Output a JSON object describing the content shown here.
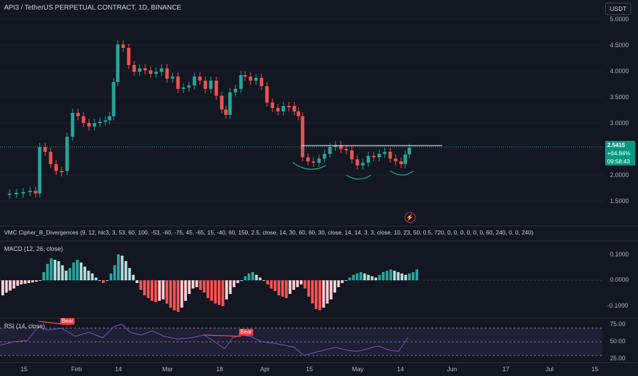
{
  "header": {
    "symbol_title": "API3 / TetherUS PERPETUAL CONTRACT, 1D, BINANCE",
    "currency": "USDT"
  },
  "price_axis": {
    "ticks": [
      "5.0000",
      "4.5000",
      "4.0000",
      "3.5000",
      "3.0000",
      "2.0000",
      "1.5000"
    ]
  },
  "last_price": {
    "price": "2.5415",
    "change": "+64.84%",
    "countdown": "09:58:43"
  },
  "indicators": {
    "vmc_label": "VMC Cipher_B_Divergences (9, 12, hlc3, 3, 53, 60, 100, -53, -60, -75, 45, -65, 15, -40, 60, 150, 2.5, close, 14, 30, 60, 60, 30, close, 14, 14, 3, 3, close, 10, 23, 50, 0.5, 720, 0, 0, 0, 0, 0, 0, 60, 240, 0, 0, 240)",
    "macd_label": "MACD (12, 26, close)",
    "macd_ticks": [
      "0.1000",
      "0.0000",
      "-0.1000"
    ],
    "rsi_label": "RSI (14, close)",
    "rsi_ticks": [
      "75.00",
      "50.00",
      "25.00"
    ],
    "bear_label_1": "Bear",
    "bear_label_2": "Bear"
  },
  "time_axis": {
    "ticks": [
      "15",
      "Feb",
      "14",
      "Mar",
      "18",
      "Apr",
      "15",
      "May",
      "14",
      "Jun",
      "17",
      "Jul",
      "15"
    ]
  },
  "colors": {
    "up": "#26a69a",
    "down": "#ef5350",
    "background": "#131722",
    "rsi_line": "#7e57c2",
    "pattern": "#22ab94"
  }
}
